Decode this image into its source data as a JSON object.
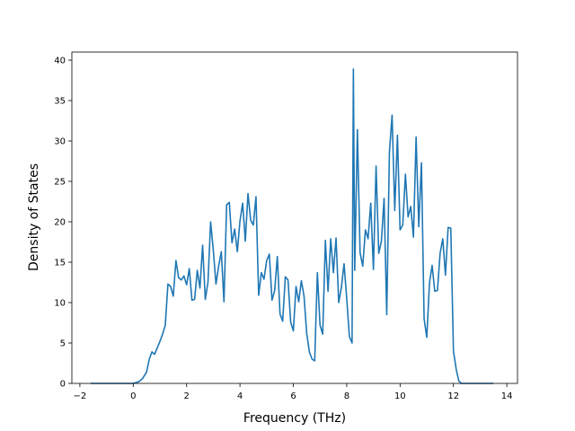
{
  "chart_data": {
    "type": "line",
    "title": "",
    "xlabel": "Frequency (THz)",
    "ylabel": "Density of States",
    "xlim": [
      -2.3,
      14.4
    ],
    "ylim": [
      0,
      41
    ],
    "xticks": [
      -2,
      0,
      2,
      4,
      6,
      8,
      10,
      12,
      14
    ],
    "yticks": [
      0,
      5,
      10,
      15,
      20,
      25,
      30,
      35,
      40
    ],
    "grid": false,
    "legend": "none",
    "series": [
      {
        "color": "#1f77b4",
        "x": [
          -1.6,
          -1.0,
          -0.5,
          0.0,
          0.2,
          0.35,
          0.5,
          0.6,
          0.7,
          0.8,
          0.9,
          1.0,
          1.1,
          1.2,
          1.3,
          1.4,
          1.5,
          1.6,
          1.7,
          1.8,
          1.9,
          2.0,
          2.1,
          2.2,
          2.3,
          2.4,
          2.5,
          2.6,
          2.7,
          2.8,
          2.9,
          3.0,
          3.1,
          3.2,
          3.3,
          3.4,
          3.5,
          3.6,
          3.7,
          3.8,
          3.9,
          4.0,
          4.1,
          4.2,
          4.3,
          4.4,
          4.5,
          4.6,
          4.7,
          4.8,
          4.9,
          5.0,
          5.1,
          5.2,
          5.3,
          5.4,
          5.5,
          5.6,
          5.7,
          5.8,
          5.9,
          6.0,
          6.1,
          6.2,
          6.3,
          6.4,
          6.5,
          6.6,
          6.7,
          6.8,
          6.9,
          7.0,
          7.1,
          7.2,
          7.3,
          7.4,
          7.5,
          7.6,
          7.7,
          7.8,
          7.9,
          8.0,
          8.1,
          8.2,
          8.25,
          8.3,
          8.4,
          8.5,
          8.6,
          8.7,
          8.8,
          8.9,
          9.0,
          9.1,
          9.2,
          9.3,
          9.4,
          9.5,
          9.6,
          9.7,
          9.8,
          9.9,
          10.0,
          10.1,
          10.2,
          10.3,
          10.4,
          10.5,
          10.6,
          10.7,
          10.8,
          10.9,
          11.0,
          11.1,
          11.2,
          11.3,
          11.4,
          11.5,
          11.6,
          11.7,
          11.8,
          11.9,
          12.0,
          12.1,
          12.2,
          12.3,
          12.5,
          13.0,
          13.5
        ],
        "y": [
          0,
          0,
          0,
          0,
          0.2,
          0.6,
          1.4,
          3.0,
          3.9,
          3.6,
          4.4,
          5.2,
          6.1,
          7.2,
          12.3,
          12.0,
          10.8,
          15.2,
          13.1,
          12.8,
          13.3,
          12.2,
          14.2,
          10.3,
          10.4,
          14.0,
          11.8,
          17.1,
          10.4,
          12.5,
          20.0,
          16.5,
          12.3,
          14.5,
          16.3,
          10.1,
          22.1,
          22.4,
          17.4,
          19.1,
          16.3,
          20.1,
          22.3,
          17.6,
          23.5,
          20.2,
          19.6,
          23.1,
          10.9,
          13.7,
          12.9,
          15.2,
          16.0,
          10.3,
          11.5,
          15.7,
          8.6,
          7.7,
          13.2,
          12.8,
          7.6,
          6.5,
          12.0,
          10.1,
          12.7,
          10.8,
          6.2,
          3.9,
          3.0,
          2.8,
          13.7,
          7.2,
          6.1,
          17.7,
          11.4,
          17.9,
          13.7,
          18.0,
          10.0,
          11.9,
          14.8,
          10.5,
          5.8,
          5.0,
          38.9,
          14.0,
          31.4,
          16.2,
          14.5,
          19.0,
          17.9,
          22.3,
          14.1,
          26.9,
          16.1,
          17.6,
          22.9,
          8.5,
          28.6,
          33.2,
          21.4,
          30.7,
          19.0,
          19.6,
          25.9,
          20.6,
          21.9,
          18.1,
          30.5,
          19.4,
          27.3,
          8.0,
          5.7,
          12.4,
          14.6,
          11.4,
          11.5,
          16.1,
          17.9,
          13.4,
          19.3,
          19.2,
          4.0,
          1.8,
          0.3,
          0,
          0,
          0,
          0
        ]
      }
    ]
  }
}
